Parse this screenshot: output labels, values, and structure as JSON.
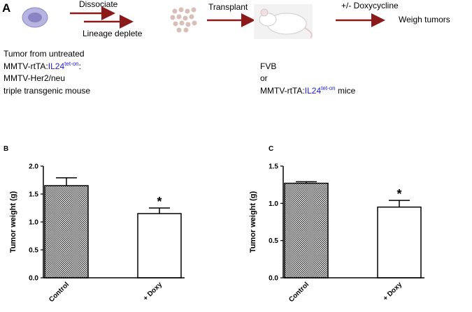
{
  "panel_a": {
    "label": "A",
    "step1": "Dissociate",
    "step2": "Lineage deplete",
    "step3": "Transplant",
    "step4": "+/- Doxycycline",
    "step5": "Weigh tumors",
    "donor": {
      "line1": "Tumor from untreated",
      "line2_prefix": "MMTV-rtTA:",
      "line2_gene": "IL24",
      "line2_sup": "tet-on",
      "line2_suffix": ":",
      "line3": "MMTV-Her2/neu",
      "line4": "triple transgenic mouse"
    },
    "recipient": {
      "line1": "FVB",
      "line2": "or",
      "line3_prefix": "MMTV-rtTA:",
      "line3_gene": "IL24",
      "line3_sup": "tet-on",
      "line3_suffix": " mice"
    }
  },
  "chart_data": [
    {
      "type": "bar",
      "panel_label": "B",
      "y_label": "Tumor weight (g)",
      "categories": [
        "Control",
        "+ Doxy"
      ],
      "values": [
        1.65,
        1.15
      ],
      "errors": [
        0.14,
        0.1
      ],
      "colors": [
        "#444444",
        "#ffffff"
      ],
      "hatch": [
        true,
        false
      ],
      "annotations": [
        {
          "at": 1,
          "text": "*"
        }
      ],
      "ylim": [
        0,
        2
      ],
      "yticks": [
        {
          "value": 0,
          "label": "0.0"
        },
        {
          "value": 0.5,
          "label": "0.5"
        },
        {
          "value": 1,
          "label": "1.0"
        },
        {
          "value": 1.5,
          "label": "1.5"
        },
        {
          "value": 2,
          "label": "2.0"
        }
      ]
    },
    {
      "type": "bar",
      "panel_label": "C",
      "y_label": "Tumor weight (g)",
      "categories": [
        "Control",
        "+ Doxy"
      ],
      "values": [
        1.27,
        0.95
      ],
      "errors": [
        0.02,
        0.09
      ],
      "colors": [
        "#444444",
        "#ffffff"
      ],
      "hatch": [
        true,
        false
      ],
      "annotations": [
        {
          "at": 1,
          "text": "*"
        }
      ],
      "ylim": [
        0,
        1.5
      ],
      "yticks": [
        {
          "value": 0,
          "label": "0.0"
        },
        {
          "value": 0.5,
          "label": "0.5"
        },
        {
          "value": 1,
          "label": "1.0"
        },
        {
          "value": 1.5,
          "label": "1.5"
        }
      ]
    }
  ]
}
